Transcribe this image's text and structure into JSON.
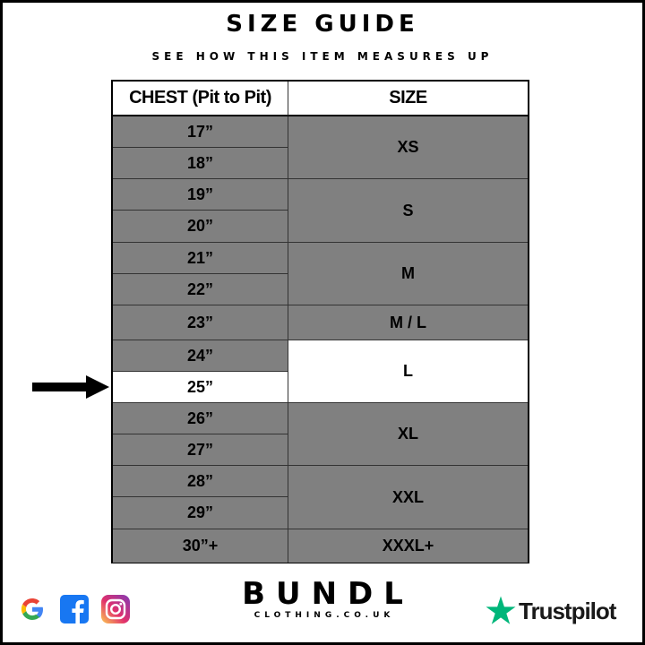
{
  "header": {
    "title": "SIZE GUIDE",
    "subtitle": "SEE HOW THIS ITEM MEASURES UP"
  },
  "table": {
    "columns": [
      "CHEST (Pit to Pit)",
      "SIZE"
    ],
    "chest_rows": [
      "17”",
      "18”",
      "19”",
      "20”",
      "21”",
      "22”",
      "23”",
      "24”",
      "25”",
      "26”",
      "27”",
      "28”",
      "29”",
      "30”+"
    ],
    "sizes": [
      {
        "label": "XS",
        "chest": [
          "17”",
          "18”"
        ]
      },
      {
        "label": "S",
        "chest": [
          "19”",
          "20”"
        ]
      },
      {
        "label": "M",
        "chest": [
          "21”",
          "22”"
        ]
      },
      {
        "label": "M / L",
        "chest": [
          "23”"
        ]
      },
      {
        "label": "L",
        "chest": [
          "24”",
          "25”"
        ]
      },
      {
        "label": "XL",
        "chest": [
          "26”",
          "27”"
        ]
      },
      {
        "label": "XXL",
        "chest": [
          "28”",
          "29”"
        ]
      },
      {
        "label": "XXXL+",
        "chest": [
          "30”+"
        ]
      }
    ],
    "highlighted_chest": "25”",
    "highlighted_size": "L",
    "colors": {
      "row": "#808080",
      "highlight": "#ffffff"
    }
  },
  "footer": {
    "brand": "BUNDL",
    "brand_sub": "CLOTHING.CO.UK",
    "social_icons": [
      "google-icon",
      "facebook-icon",
      "instagram-icon"
    ],
    "trustpilot": "Trustpilot",
    "trustpilot_color": "#00b67a"
  }
}
